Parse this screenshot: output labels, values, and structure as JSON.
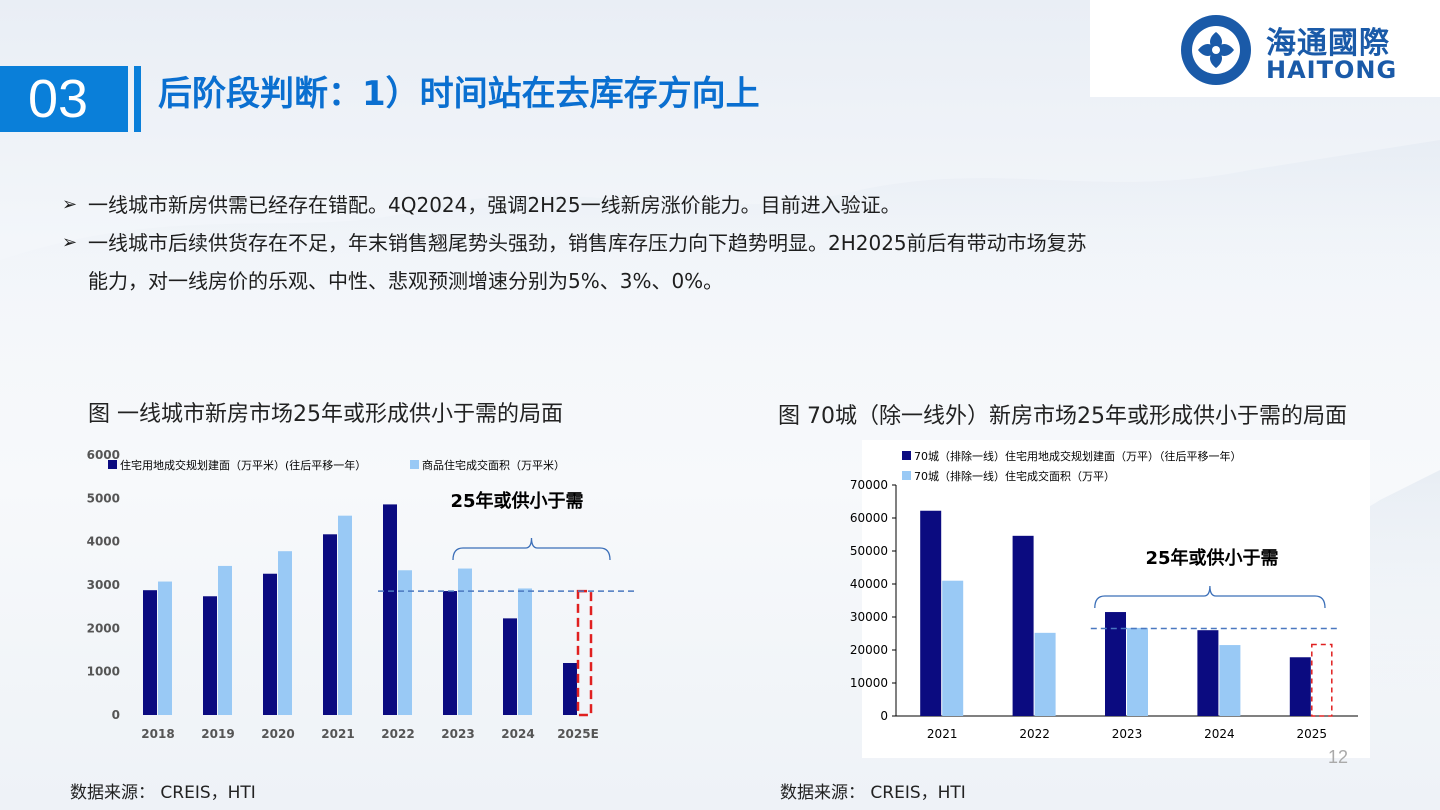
{
  "header": {
    "section_number": "03",
    "title": "后阶段判断：1）时间站在去库存方向上",
    "logo": {
      "cn": "海通國際",
      "en": "HAITONG"
    }
  },
  "bullets": [
    "一线城市新房供需已经存在错配。4Q2024，强调2H25一线新房涨价能力。目前进入验证。",
    "一线城市后续供货存在不足，年末销售翘尾势头强劲，销售库存压力向下趋势明显。2H2025前后有带动市场复苏",
    "能力，对一线房价的乐观、中性、悲观预测增速分别为5%、3%、0%。"
  ],
  "left_caption": "图 一线城市新房市场25年或形成供小于需的局面",
  "right_caption": "图 70城（除一线外）新房市场25年或形成供小于需的局面",
  "left_source": "数据来源： CREIS，HTI",
  "right_source": "数据来源： CREIS，HTI",
  "page_number": "12",
  "colors": {
    "accent": "#0a7fd9",
    "title": "#0a6fd0",
    "dark_bar": "#0b0b80",
    "light_bar": "#99c9f5",
    "highlight": "#e02020",
    "dash": "#4a78c0"
  },
  "chart_data": [
    {
      "type": "bar",
      "categories": [
        "2018",
        "2019",
        "2020",
        "2021",
        "2022",
        "2023",
        "2024",
        "2025E"
      ],
      "series": [
        {
          "name": "住宅用地成交规划建面（万平米）(往后平移一年）",
          "values": [
            2880,
            2740,
            3260,
            4170,
            4860,
            2860,
            2230,
            1200
          ]
        },
        {
          "name": "商品住宅成交面积（万平米）",
          "values": [
            3080,
            3440,
            3780,
            4600,
            3340,
            3380,
            2920,
            null
          ]
        }
      ],
      "ylim": [
        0,
        6000
      ],
      "yticks": [
        0,
        1000,
        2000,
        3000,
        4000,
        5000,
        6000
      ],
      "reference_line": 2860,
      "annotation": "25年或供小于需",
      "legend": "top-left",
      "grid": false
    },
    {
      "type": "bar",
      "categories": [
        "2021",
        "2022",
        "2023",
        "2024",
        "2025"
      ],
      "series": [
        {
          "name": "70城（排除一线）住宅用地成交规划建面（万平）（往后平移一年）",
          "values": [
            62200,
            54600,
            31500,
            26000,
            17800
          ]
        },
        {
          "name": "70城（排除一线）住宅成交面积（万平）",
          "values": [
            41000,
            25200,
            26700,
            21500,
            null
          ]
        }
      ],
      "ylim": [
        0,
        70000
      ],
      "yticks": [
        0,
        10000,
        20000,
        30000,
        40000,
        50000,
        60000,
        70000
      ],
      "reference_line": 26500,
      "annotation": "25年或供小于需",
      "legend": "top",
      "grid": false
    }
  ]
}
